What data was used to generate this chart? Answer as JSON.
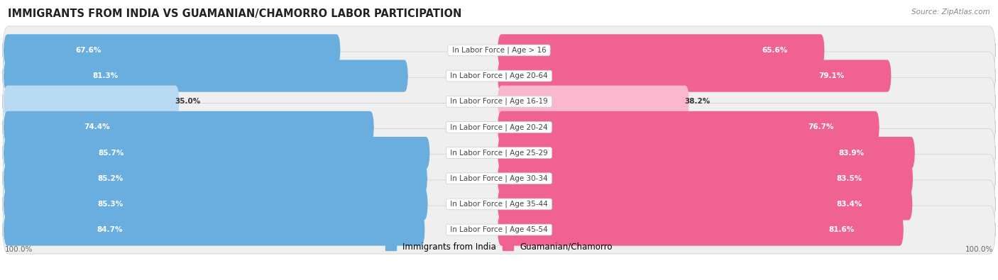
{
  "title": "IMMIGRANTS FROM INDIA VS GUAMANIAN/CHAMORRO LABOR PARTICIPATION",
  "source": "Source: ZipAtlas.com",
  "categories": [
    "In Labor Force | Age > 16",
    "In Labor Force | Age 20-64",
    "In Labor Force | Age 16-19",
    "In Labor Force | Age 20-24",
    "In Labor Force | Age 25-29",
    "In Labor Force | Age 30-34",
    "In Labor Force | Age 35-44",
    "In Labor Force | Age 45-54"
  ],
  "india_values": [
    67.6,
    81.3,
    35.0,
    74.4,
    85.7,
    85.2,
    85.3,
    84.7
  ],
  "guam_values": [
    65.6,
    79.1,
    38.2,
    76.7,
    83.9,
    83.5,
    83.4,
    81.6
  ],
  "india_color": "#6aaee0",
  "guam_color": "#f06292",
  "india_color_light": "#b8d9f2",
  "guam_color_light": "#f9b8ce",
  "row_bg_color": "#efefef",
  "max_value": 100.0,
  "title_fontsize": 10.5,
  "source_fontsize": 7.5,
  "label_fontsize": 7.5,
  "value_fontsize": 7.5,
  "legend_fontsize": 8.5,
  "background_color": "#ffffff"
}
